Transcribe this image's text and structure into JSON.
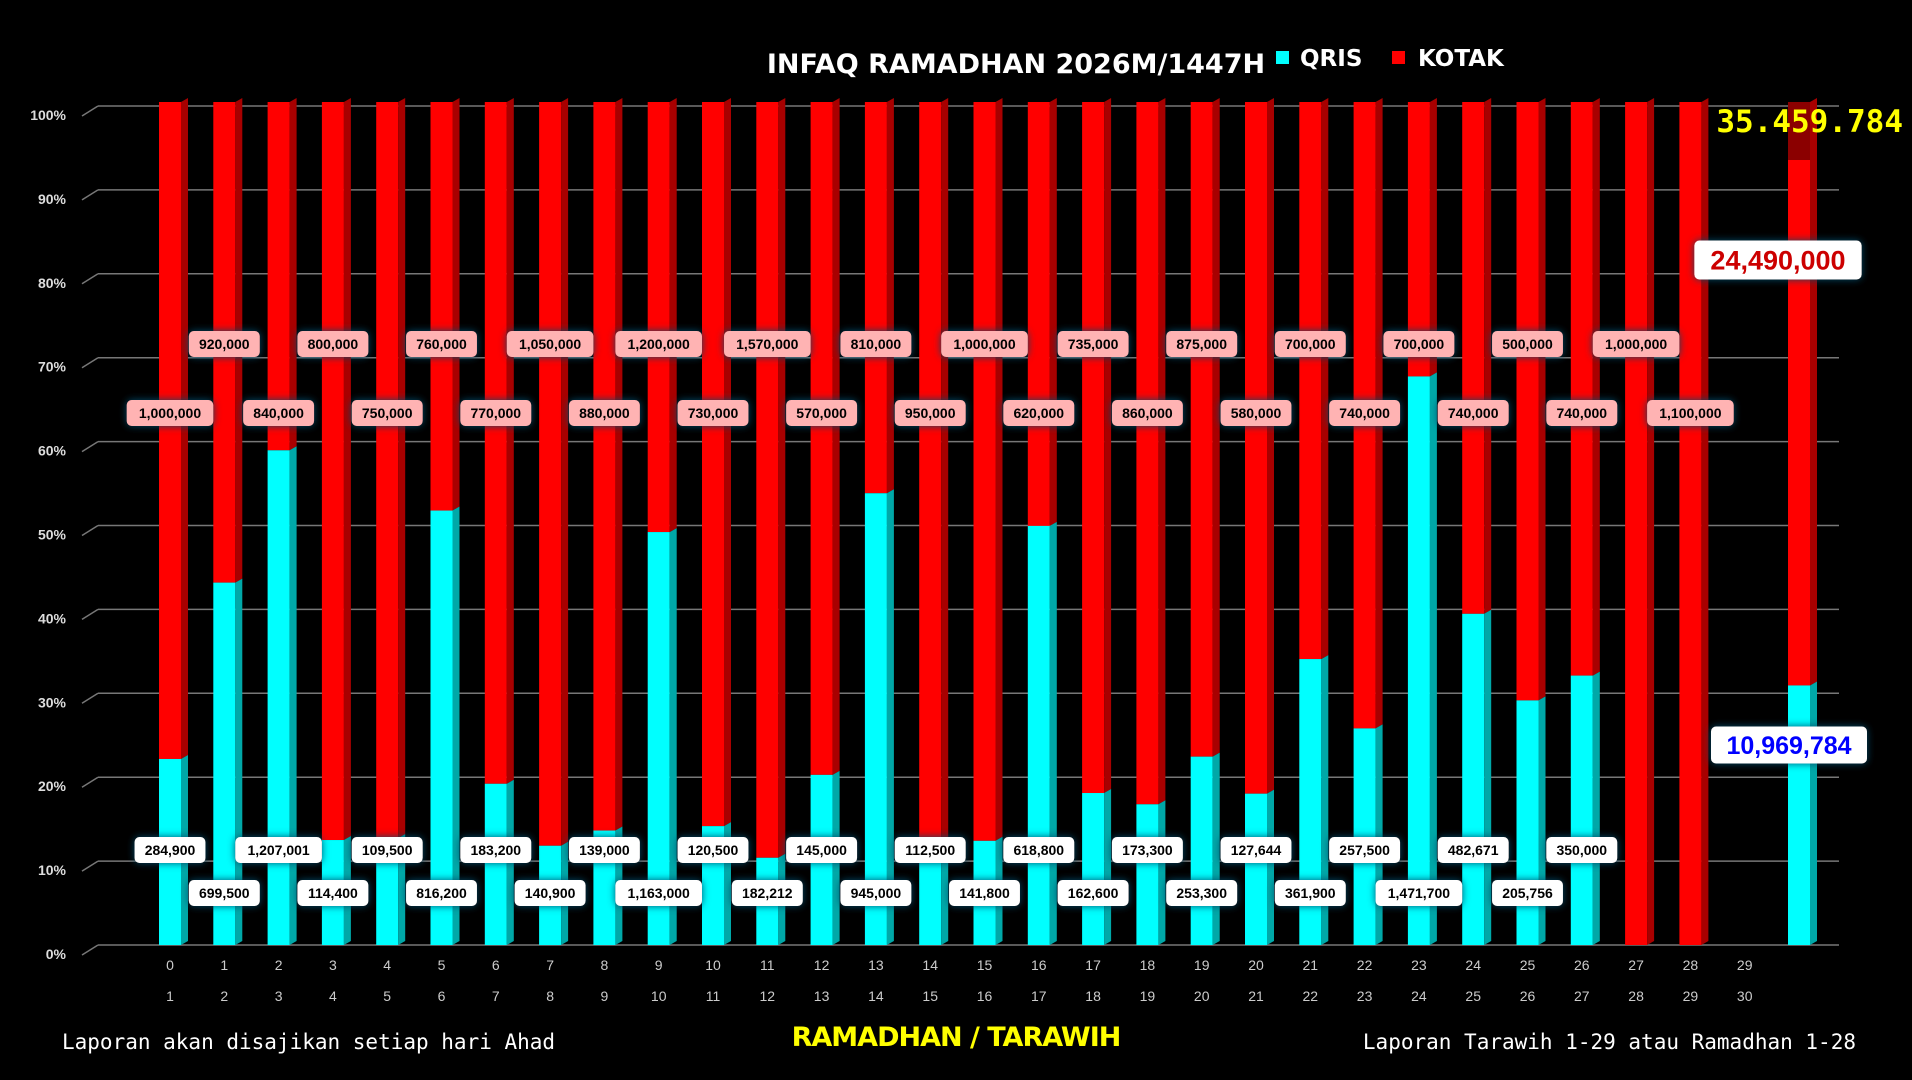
{
  "chart_data": {
    "type": "bar",
    "stacked": "percent",
    "title": "INFAQ RAMADHAN 2026M/1447H",
    "xlabel": "RAMADHAN / TARAWIH",
    "ylim": [
      0,
      100
    ],
    "yticks": [
      "0%",
      "10%",
      "20%",
      "30%",
      "40%",
      "50%",
      "60%",
      "70%",
      "80%",
      "90%",
      "100%"
    ],
    "grid": true,
    "legend_placement": "top",
    "categories_top": [
      "0",
      "1",
      "2",
      "3",
      "4",
      "5",
      "6",
      "7",
      "8",
      "9",
      "10",
      "11",
      "12",
      "13",
      "14",
      "15",
      "16",
      "17",
      "18",
      "19",
      "20",
      "21",
      "22",
      "23",
      "24",
      "25",
      "26",
      "27",
      "28",
      "29"
    ],
    "categories_bottom": [
      "1",
      "2",
      "3",
      "4",
      "5",
      "6",
      "7",
      "8",
      "9",
      "10",
      "11",
      "12",
      "13",
      "14",
      "15",
      "16",
      "17",
      "18",
      "19",
      "20",
      "21",
      "22",
      "23",
      "24",
      "25",
      "26",
      "27",
      "28",
      "29",
      "30"
    ],
    "series": [
      {
        "name": "QRIS",
        "color": "#00ffff",
        "values": [
          284900,
          699500,
          1207001,
          114400,
          109500,
          816200,
          183200,
          140900,
          139000,
          1163000,
          120500,
          182212,
          145000,
          945000,
          112500,
          141800,
          618800,
          162600,
          173300,
          253300,
          127644,
          361900,
          257500,
          1471700,
          482671,
          205756,
          350000,
          0,
          0
        ],
        "labels": [
          "284,900",
          "699,500",
          "1,207,001",
          "114,400",
          "109,500",
          "816,200",
          "183,200",
          "140,900",
          "139,000",
          "1,163,000",
          "120,500",
          "182,212",
          "145,000",
          "945,000",
          "112,500",
          "141,800",
          "618,800",
          "162,600",
          "173,300",
          "253,300",
          "127,644",
          "361,900",
          "257,500",
          "1,471,700",
          "482,671",
          "205,756",
          "350,000",
          "",
          ""
        ]
      },
      {
        "name": "KOTAK",
        "color": "#ff0000",
        "values": [
          1000000,
          920000,
          840000,
          800000,
          750000,
          760000,
          770000,
          1050000,
          880000,
          1200000,
          730000,
          1570000,
          570000,
          810000,
          950000,
          1000000,
          620000,
          735000,
          860000,
          875000,
          580000,
          700000,
          740000,
          700000,
          740000,
          500000,
          740000,
          1000000,
          1100000
        ],
        "labels": [
          "1,000,000",
          "920,000",
          "840,000",
          "800,000",
          "750,000",
          "760,000",
          "770,000",
          "1,050,000",
          "880,000",
          "1,200,000",
          "730,000",
          "1,570,000",
          "570,000",
          "810,000",
          "950,000",
          "1,000,000",
          "620,000",
          "735,000",
          "860,000",
          "875,000",
          "580,000",
          "700,000",
          "740,000",
          "700,000",
          "740,000",
          "500,000",
          "740,000",
          "1,000,000",
          "1,100,000"
        ]
      }
    ],
    "total": {
      "qris": 10969784,
      "kotak": 24490000,
      "qris_label": "10,969,784",
      "kotak_label": "24,490,000",
      "grand_label": "35.459.784",
      "grand_color": "#ffff00",
      "kotak_label_color": "#cc0000",
      "qris_label_color": "#0000ff"
    }
  },
  "footer": {
    "left": "Laporan akan disajikan setiap hari Ahad",
    "right": "Laporan Tarawih 1-29 atau Ramadhan 1-28"
  }
}
